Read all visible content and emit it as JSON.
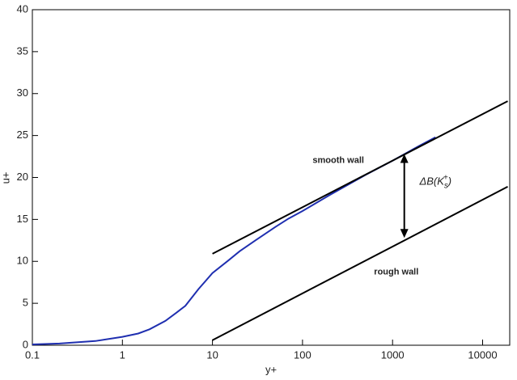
{
  "chart_data": {
    "type": "line",
    "x_label": "y+",
    "y_label": "u+",
    "xlim": [
      0.1,
      20000
    ],
    "ylim": [
      0,
      40
    ],
    "log_x": true,
    "xticks": [
      0.1,
      1,
      10,
      100,
      1000,
      10000
    ],
    "yticks": [
      0,
      5,
      10,
      15,
      20,
      25,
      30,
      35,
      40
    ],
    "series": [
      {
        "color": "#1f2fb0",
        "x": [
          0.1,
          0.2,
          0.5,
          1,
          1.5,
          2,
          3,
          4,
          5,
          7,
          10,
          15,
          20,
          30,
          50,
          70,
          100,
          200,
          500,
          1000,
          2000,
          3000
        ],
        "values": [
          0.1,
          0.2,
          0.5,
          1.0,
          1.4,
          1.9,
          2.9,
          3.9,
          4.7,
          6.7,
          8.6,
          10.1,
          11.2,
          12.5,
          14.1,
          15.1,
          16.0,
          17.9,
          20.3,
          22.0,
          23.8,
          24.8
        ]
      },
      {
        "color": "#000000",
        "x": [
          10,
          19000
        ],
        "values": [
          10.9,
          29.1
        ]
      },
      {
        "color": "#000000",
        "x": [
          10,
          19000
        ],
        "values": [
          0.6,
          18.9
        ]
      }
    ],
    "annotations": [
      {
        "text": "smooth wall",
        "x": 250,
        "y": 22
      },
      {
        "text": "rough wall",
        "x": 1100,
        "y": 8.7
      }
    ],
    "arrow": {
      "x": 1350,
      "y_from": 12.8,
      "y_to": 22.8,
      "label_parts": [
        "ΔB(K",
        "s",
        "+",
        ")"
      ],
      "label_x": 3000,
      "label_y": 19.4
    }
  }
}
